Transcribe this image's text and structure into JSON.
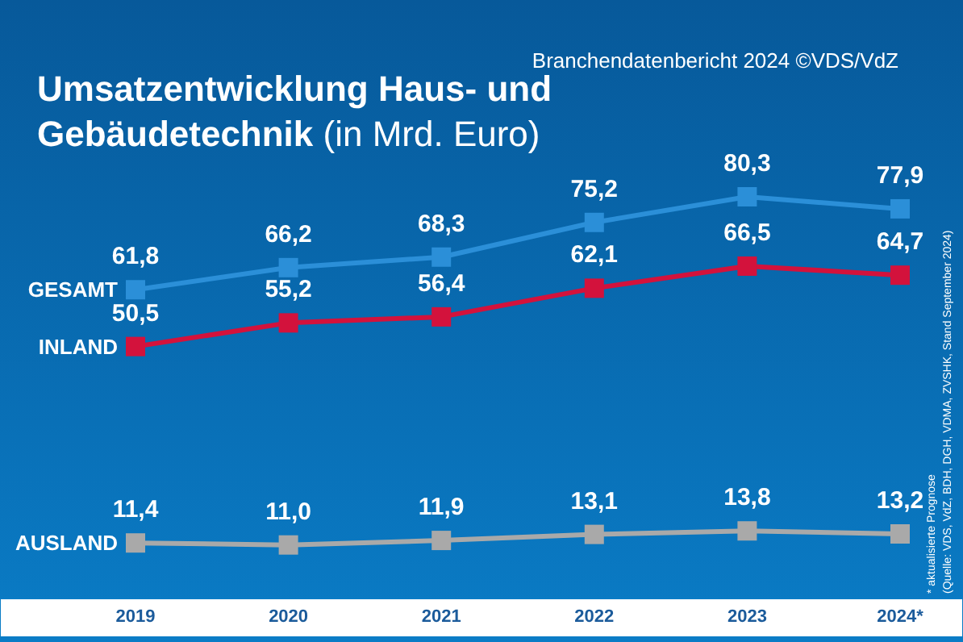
{
  "chart_data": {
    "type": "line",
    "title": "Umsatzentwicklung Haus- und Gebäudetechnik (in Mrd. Euro)",
    "categories": [
      "2019",
      "2020",
      "2021",
      "2022",
      "2023",
      "2024*"
    ],
    "series": [
      {
        "name": "GESAMT",
        "color": "#2b8fd8",
        "values": [
          61.8,
          66.2,
          68.3,
          75.2,
          80.3,
          77.9
        ],
        "value_labels": [
          "61,8",
          "66,2",
          "68,3",
          "75,2",
          "80,3",
          "77,9"
        ]
      },
      {
        "name": "INLAND",
        "color": "#d3123c",
        "values": [
          50.5,
          55.2,
          56.4,
          62.1,
          66.5,
          64.7
        ],
        "value_labels": [
          "50,5",
          "55,2",
          "56,4",
          "62,1",
          "66,5",
          "64,7"
        ]
      },
      {
        "name": "AUSLAND",
        "color": "#a9a9a9",
        "values": [
          11.4,
          11.0,
          11.9,
          13.1,
          13.8,
          13.2
        ],
        "value_labels": [
          "11,4",
          "11,0",
          "11,9",
          "13,1",
          "13,8",
          "13,2"
        ]
      }
    ],
    "annotations": [
      "Branchendatenbericht 2024 ©VDS/VdZ",
      "* aktualisierte Prognose",
      "(Quelle: VDS, VdZ, BDH, DGH, VDMA, ZVSHK, Stand September 2024)"
    ],
    "legend": false,
    "grid": false,
    "marker": "square",
    "line_style": "solid"
  }
}
